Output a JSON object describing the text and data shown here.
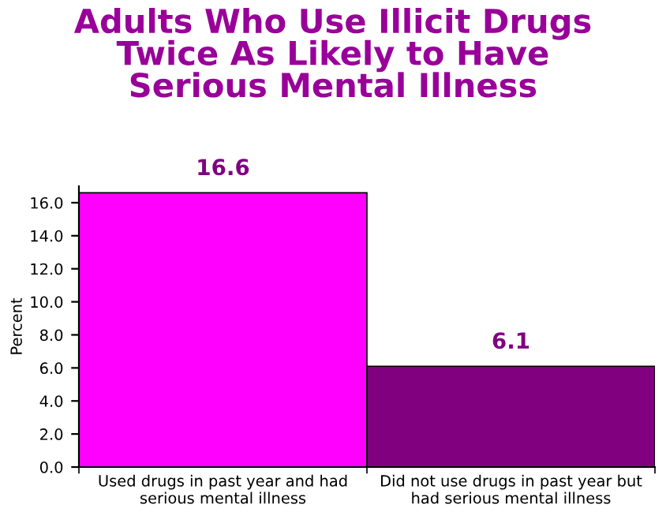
{
  "chart_data": {
    "type": "bar",
    "title": "Adults Who Use Illicit Drugs\nTwice As Likely to Have\nSerious Mental Illness",
    "ylabel": "Percent",
    "categories": [
      "Used drugs in past year and had\nserious mental illness",
      "Did not use drugs in past year but\nhad serious mental illness"
    ],
    "values": [
      16.6,
      6.1
    ],
    "colors": [
      "#ff00ff",
      "#800080"
    ],
    "data_labels": true,
    "ylim": [
      0,
      17
    ],
    "yticks": [
      {
        "value": 0,
        "label": "0.0"
      },
      {
        "value": 2,
        "label": "2.0"
      },
      {
        "value": 4,
        "label": "4.0"
      },
      {
        "value": 6,
        "label": "6.0"
      },
      {
        "value": 8,
        "label": "8.0"
      },
      {
        "value": 10,
        "label": "10.0"
      },
      {
        "value": 12,
        "label": "12.0"
      },
      {
        "value": 14,
        "label": "14.0"
      },
      {
        "value": 16,
        "label": "16.0"
      }
    ],
    "grid": false,
    "legend": false
  }
}
